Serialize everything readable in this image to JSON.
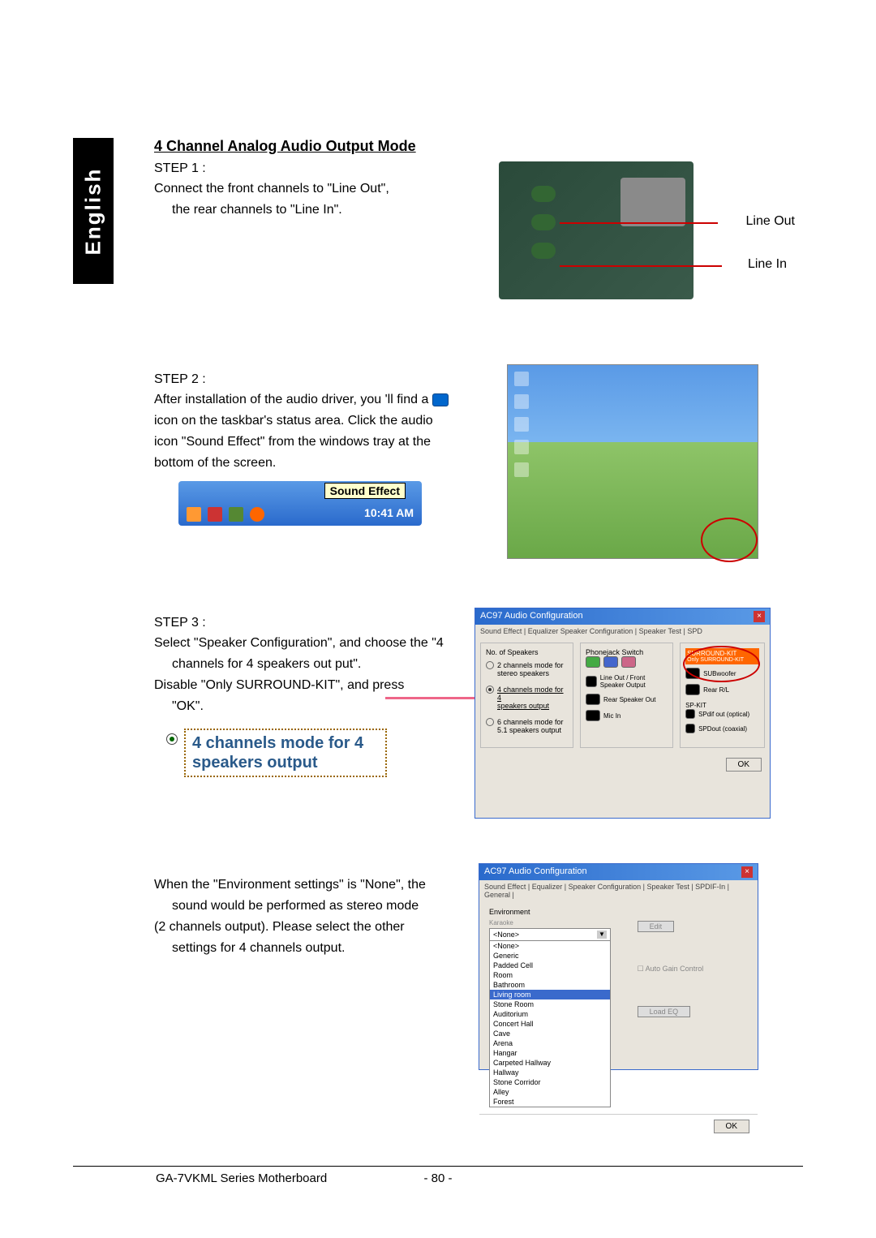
{
  "language_tab": "English",
  "heading": "4 Channel Analog Audio Output Mode",
  "step1": {
    "label": "STEP 1 :",
    "line1": "Connect the front channels to \"Line Out\",",
    "line2": "the rear channels to \"Line In\".",
    "label_line_out": "Line Out",
    "label_line_in": "Line In"
  },
  "step2": {
    "label": "STEP 2 :",
    "line1a": "After installation of the audio driver, you 'll find a",
    "line2": "icon on the taskbar's status area. Click the audio",
    "line3": "icon \"Sound Effect\" from the windows tray at the",
    "line4": "bottom of the screen.",
    "tooltip": "Sound Effect",
    "time": "10:41 AM"
  },
  "step3": {
    "label": "STEP 3 :",
    "line1": "Select \"Speaker Configuration\", and choose the \"4",
    "line2": "channels for 4 speakers out put\".",
    "line3": "Disable \"Only SURROUND-KIT\", and press",
    "line4": "\"OK\".",
    "highlight_text": "4 channels mode for 4 speakers output",
    "dialog": {
      "title": "AC97 Audio Configuration",
      "tabs": "Sound Effect | Equalizer  Speaker Configuration | Speaker Test | SPD",
      "col_left_title": "No. of Speakers",
      "opt1": "2 channels mode for stereo speakers",
      "opt2_a": "4 channels mode for 4",
      "opt2_b": "speakers output",
      "opt3": "6 channels mode for 5.1 speakers output",
      "col_mid_title": "Phonejack Switch",
      "jack1": "Line Out / Front Speaker Output",
      "jack2": "Rear Speaker Out",
      "jack3": "Mic In",
      "col_right_title": "SURROUND-KIT",
      "only_surround": "Only SURROUND-KIT",
      "subwoofer": "SUBwoofer",
      "rear_rl": "Rear R/L",
      "spkit_label": "SP-KIT",
      "spdif_opt": "SPdif out (optical)",
      "spdif_coax": "SPDout (coaxial)",
      "ok": "OK"
    }
  },
  "environment": {
    "line1": "When the \"Environment settings\" is \"None\", the",
    "line2": "sound would be performed as stereo mode",
    "line3": "(2 channels output). Please select the other",
    "line4": "settings for 4 channels output.",
    "dialog": {
      "title": "AC97 Audio Configuration",
      "tabs": "Sound Effect | Equalizer | Speaker Configuration | Speaker Test | SPDIF-In | General |",
      "env_label": "Environment",
      "selected": "<None>",
      "options": [
        "<None>",
        "Generic",
        "Padded Cell",
        "Room",
        "Bathroom",
        "Living room",
        "Stone Room",
        "Auditorium",
        "Concert Hall",
        "Cave",
        "Arena",
        "Hangar",
        "Carpeted Hallway",
        "Hallway",
        "Stone Corridor",
        "Alley",
        "Forest"
      ],
      "highlighted_index": 5,
      "edit_btn": "Edit",
      "auto_gain": "Auto Gain Control",
      "load_btn": "Load EQ",
      "ok": "OK"
    }
  },
  "footer": {
    "product": "GA-7VKML Series Motherboard",
    "page": "- 80 -"
  },
  "colors": {
    "red_highlight": "#cc0000",
    "pink_arrow": "#ee6688",
    "title_bar": "#2a6acc",
    "orange_hl": "#ff6600"
  }
}
